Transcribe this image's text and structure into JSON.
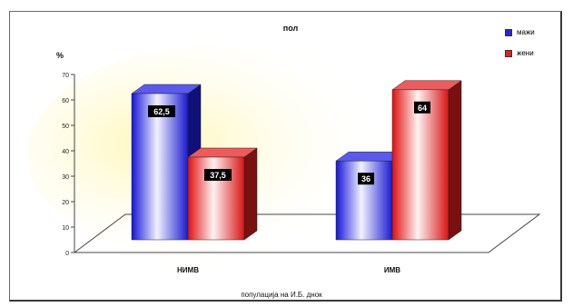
{
  "chart_data": {
    "type": "bar",
    "title": "пол",
    "ylabel": "%",
    "xlabel": "популација на И.Б. днок",
    "categories": [
      "НИМВ",
      "ИМВ"
    ],
    "series": [
      {
        "name": "мажи",
        "values": [
          62.5,
          36
        ],
        "labels": [
          "62,5",
          "36"
        ],
        "color": "#2323e6"
      },
      {
        "name": "жени",
        "values": [
          37.5,
          64
        ],
        "labels": [
          "37,5",
          "64"
        ],
        "color": "#e61e1e"
      }
    ],
    "ylim": [
      0,
      70
    ],
    "yticks": [
      0,
      10,
      20,
      30,
      40,
      50,
      60,
      70
    ],
    "grid": false,
    "legend": "top-right",
    "style": "3d-column"
  }
}
